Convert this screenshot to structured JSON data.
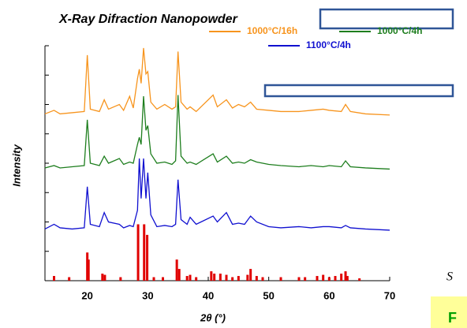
{
  "chart_data": {
    "type": "line",
    "title": "X-Ray Difraction Nanopowder",
    "x_label": "2θ (°)",
    "y_label": "Intensity",
    "xlim": [
      13,
      70
    ],
    "xticks": [
      20,
      30,
      40,
      50,
      60,
      70
    ],
    "ylim": [
      0,
      100
    ],
    "yticks": [
      0,
      12.5,
      25,
      37.5,
      50,
      62.5,
      75,
      87.5,
      100
    ],
    "x": [
      13,
      14.5,
      15.5,
      17.5,
      19.5,
      20,
      20.5,
      22,
      22.8,
      23.5,
      25.3,
      26,
      27,
      27.6,
      28.3,
      28.6,
      28.9,
      29.3,
      29.7,
      30,
      30.5,
      31.5,
      32.8,
      34,
      34.6,
      35,
      35.5,
      36.5,
      37,
      38,
      40.8,
      41.5,
      43,
      44,
      45,
      46,
      47,
      48,
      50,
      52,
      55,
      57,
      59,
      60,
      62,
      62.7,
      63.5,
      66,
      70
    ],
    "series": [
      {
        "name": "1000°C/16h",
        "color": "#f7941d",
        "values": [
          71,
          72.5,
          71,
          71.5,
          72,
          96,
          73,
          72,
          77,
          73,
          75,
          72.5,
          78.5,
          73.5,
          86,
          90,
          84,
          99,
          88,
          89,
          76,
          73,
          75,
          73,
          74,
          97.5,
          76,
          73,
          74,
          72,
          79,
          74,
          77,
          73.5,
          75,
          74,
          76,
          73,
          72.5,
          72,
          72,
          72.5,
          73,
          72.5,
          72,
          75,
          72,
          71,
          70.5
        ]
      },
      {
        "name": "1000°C/4h",
        "color": "#1e7e1e",
        "values": [
          48,
          49,
          48,
          48.5,
          49,
          68.5,
          50,
          49,
          53,
          50,
          52,
          49.5,
          50.5,
          50,
          58,
          61,
          58,
          78.5,
          64,
          66,
          54,
          50,
          50.5,
          49.5,
          51,
          79,
          53,
          50,
          50.5,
          49.5,
          54,
          50.5,
          53,
          50,
          50.5,
          50,
          51.5,
          50.5,
          49.5,
          49,
          48.5,
          49,
          48.5,
          49,
          48.5,
          51,
          48.5,
          48,
          47.5
        ]
      },
      {
        "name": "1100°C/4h",
        "color": "#1010d0",
        "values": [
          22,
          24,
          22.5,
          22,
          22.5,
          40,
          24,
          23,
          29,
          25,
          24,
          22.5,
          23.5,
          23,
          30,
          52,
          35,
          52,
          35,
          46,
          28,
          23,
          23.5,
          23,
          24,
          43,
          26,
          24,
          27,
          24,
          27.5,
          25,
          29,
          24,
          24.5,
          24,
          27.5,
          25,
          23,
          22.5,
          23,
          22.5,
          23,
          23,
          22.5,
          23.5,
          22.5,
          22,
          21.5
        ]
      }
    ],
    "reference": {
      "color": "#e00000",
      "x": [
        14.5,
        17,
        20,
        20.2,
        22.5,
        22.9,
        25.5,
        28.4,
        29.4,
        29.9,
        31,
        32.5,
        34.8,
        35.2,
        36.5,
        37,
        38,
        40.5,
        41,
        42,
        43,
        44,
        45,
        46.5,
        47,
        48,
        49,
        52,
        55,
        56,
        58,
        59,
        60,
        61,
        62,
        62.7,
        63,
        65
      ],
      "values": [
        2,
        1.5,
        12,
        9,
        3,
        2.5,
        1.5,
        24,
        24,
        19.5,
        1.5,
        1.5,
        9,
        5,
        2,
        2.5,
        1.5,
        4,
        3,
        3,
        2.5,
        1.5,
        2,
        2.5,
        5,
        2,
        1.5,
        1.5,
        1.5,
        1.5,
        2,
        2.5,
        1.5,
        2,
        3,
        4,
        2,
        1
      ]
    }
  },
  "fragments": [
    "S",
    "F"
  ]
}
